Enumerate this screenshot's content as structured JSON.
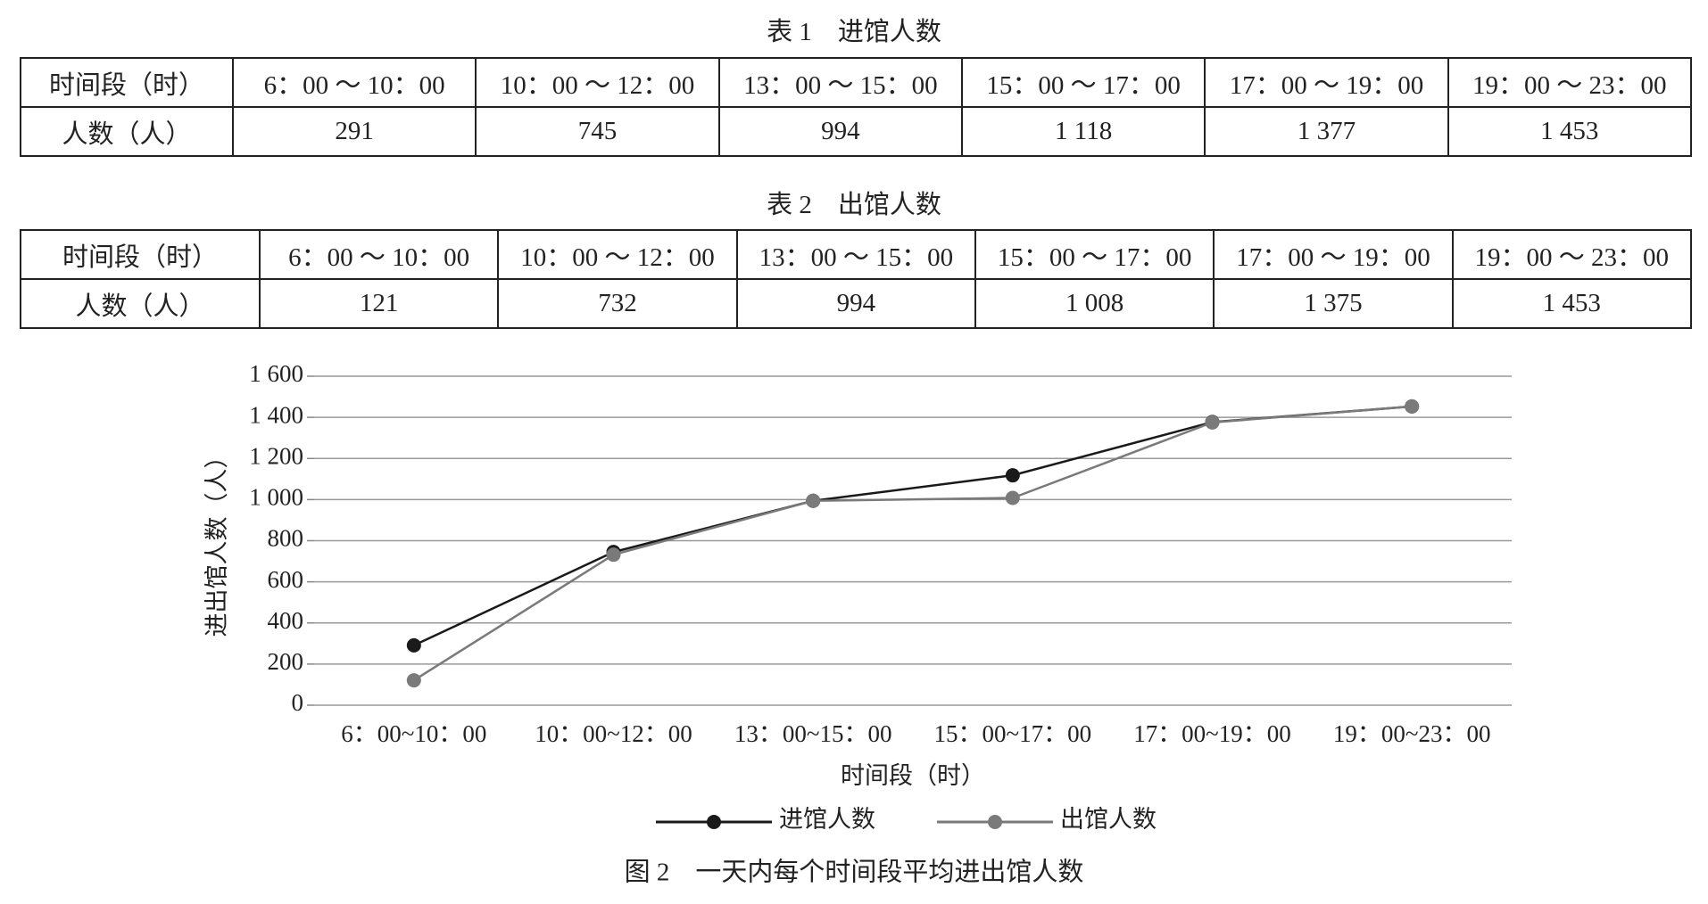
{
  "table1": {
    "title": "表 1　进馆人数",
    "rows": [
      [
        "时间段（时）",
        "6：00 ～ 10：00",
        "10：00 ～ 12：00",
        "13：00 ～ 15：00",
        "15：00 ～ 17：00",
        "17：00 ～ 19：00",
        "19：00 ～ 23：00"
      ],
      [
        "人数（人）",
        "291",
        "745",
        "994",
        "1 118",
        "1 377",
        "1 453"
      ]
    ]
  },
  "table2": {
    "title": "表 2　出馆人数",
    "rows": [
      [
        "时间段（时）",
        "6：00 ～ 10：00",
        "10：00 ～ 12：00",
        "13：00 ～ 15：00",
        "15：00 ～ 17：00",
        "17：00 ～ 19：00",
        "19：00 ～ 23：00"
      ],
      [
        "人数（人）",
        "121",
        "732",
        "994",
        "1 008",
        "1 375",
        "1 453"
      ]
    ]
  },
  "chart_data": {
    "type": "line",
    "title": "图 2　一天内每个时间段平均进出馆人数",
    "x_label": "时间段（时）",
    "y_label": "进出馆人数（人）",
    "categories": [
      "6：00~10：00",
      "10：00~12：00",
      "13：00~15：00",
      "15：00~17：00",
      "17：00~19：00",
      "19：00~23：00"
    ],
    "series": [
      {
        "name": "进馆人数",
        "color": "#1a1a1a",
        "values": [
          291,
          745,
          994,
          1118,
          1377,
          1453
        ]
      },
      {
        "name": "出馆人数",
        "color": "#7a7a7a",
        "values": [
          121,
          732,
          994,
          1008,
          1375,
          1453
        ]
      }
    ],
    "ylim": [
      0,
      1600
    ],
    "yticks": [
      0,
      200,
      400,
      600,
      800,
      {
        "value": 1000,
        "label": "1 000"
      },
      {
        "value": 1200,
        "label": "1 200"
      },
      {
        "value": 1400,
        "label": "1 400"
      },
      {
        "value": 1600,
        "label": "1 600"
      }
    ],
    "grid": true,
    "legend": "bottom"
  }
}
